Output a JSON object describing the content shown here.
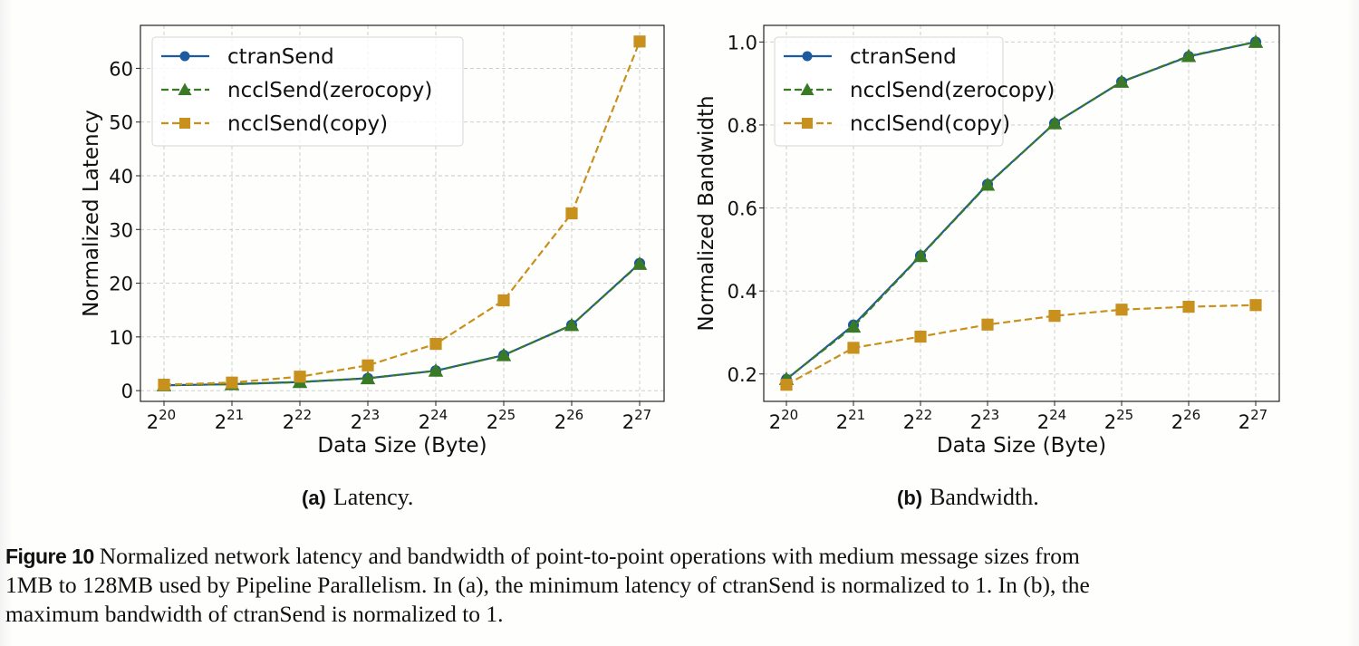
{
  "chart_data": [
    {
      "type": "line",
      "id": "a",
      "title": "",
      "xlabel": "Data Size (Byte)",
      "ylabel": "Normalized Latency",
      "x": [
        "2^20",
        "2^21",
        "2^22",
        "2^23",
        "2^24",
        "2^25",
        "2^26",
        "2^27"
      ],
      "x_ticks": [
        {
          "base": "2",
          "exp": "20"
        },
        {
          "base": "2",
          "exp": "21"
        },
        {
          "base": "2",
          "exp": "22"
        },
        {
          "base": "2",
          "exp": "23"
        },
        {
          "base": "2",
          "exp": "24"
        },
        {
          "base": "2",
          "exp": "25"
        },
        {
          "base": "2",
          "exp": "26"
        },
        {
          "base": "2",
          "exp": "27"
        }
      ],
      "y_ticks": [
        0,
        10,
        20,
        30,
        40,
        50,
        60
      ],
      "ylim": [
        -2,
        68
      ],
      "grid": true,
      "legend_position": "top-left",
      "series": [
        {
          "name": "ctranSend",
          "color": "#1b5a9e",
          "style": "solid",
          "marker": "circle",
          "values": [
            1.0,
            1.2,
            1.6,
            2.3,
            3.7,
            6.6,
            12.2,
            23.7
          ]
        },
        {
          "name": "ncclSend(zerocopy)",
          "color": "#3a7a26",
          "style": "dashed",
          "marker": "triangle",
          "values": [
            1.0,
            1.2,
            1.6,
            2.3,
            3.7,
            6.6,
            12.2,
            23.6
          ]
        },
        {
          "name": "ncclSend(copy)",
          "color": "#c8901c",
          "style": "dashed",
          "marker": "square",
          "values": [
            1.1,
            1.5,
            2.6,
            4.7,
            8.7,
            16.8,
            33.0,
            65.0
          ]
        }
      ],
      "subcaption": {
        "label": "(a)",
        "text": "Latency."
      }
    },
    {
      "type": "line",
      "id": "b",
      "title": "",
      "xlabel": "Data Size (Byte)",
      "ylabel": "Normalized Bandwidth",
      "x": [
        "2^20",
        "2^21",
        "2^22",
        "2^23",
        "2^24",
        "2^25",
        "2^26",
        "2^27"
      ],
      "x_ticks": [
        {
          "base": "2",
          "exp": "20"
        },
        {
          "base": "2",
          "exp": "21"
        },
        {
          "base": "2",
          "exp": "22"
        },
        {
          "base": "2",
          "exp": "23"
        },
        {
          "base": "2",
          "exp": "24"
        },
        {
          "base": "2",
          "exp": "25"
        },
        {
          "base": "2",
          "exp": "26"
        },
        {
          "base": "2",
          "exp": "27"
        }
      ],
      "y_ticks": [
        "0.2",
        "0.4",
        "0.6",
        "0.8",
        "1.0"
      ],
      "ylim": [
        0.134,
        1.04
      ],
      "grid": true,
      "legend_position": "top-left",
      "series": [
        {
          "name": "ctranSend",
          "color": "#1b5a9e",
          "style": "solid",
          "marker": "circle",
          "values": [
            0.187,
            0.318,
            0.485,
            0.657,
            0.804,
            0.904,
            0.965,
            1.0
          ]
        },
        {
          "name": "ncclSend(zerocopy)",
          "color": "#3a7a26",
          "style": "dashed",
          "marker": "triangle",
          "values": [
            0.188,
            0.314,
            0.484,
            0.656,
            0.804,
            0.904,
            0.966,
            1.0
          ]
        },
        {
          "name": "ncclSend(copy)",
          "color": "#c8901c",
          "style": "dashed",
          "marker": "square",
          "values": [
            0.174,
            0.263,
            0.29,
            0.319,
            0.34,
            0.355,
            0.362,
            0.366
          ]
        }
      ],
      "subcaption": {
        "label": "(b)",
        "text": "Bandwidth."
      }
    }
  ],
  "caption": {
    "label": "Figure 10",
    "lines": [
      "Normalized network latency and bandwidth of point-to-point operations with medium message sizes from",
      "1MB to 128MB used by Pipeline Parallelism. In (a), the minimum latency of ctranSend is normalized to 1. In (b), the",
      "maximum bandwidth of ctranSend is normalized to 1."
    ]
  }
}
